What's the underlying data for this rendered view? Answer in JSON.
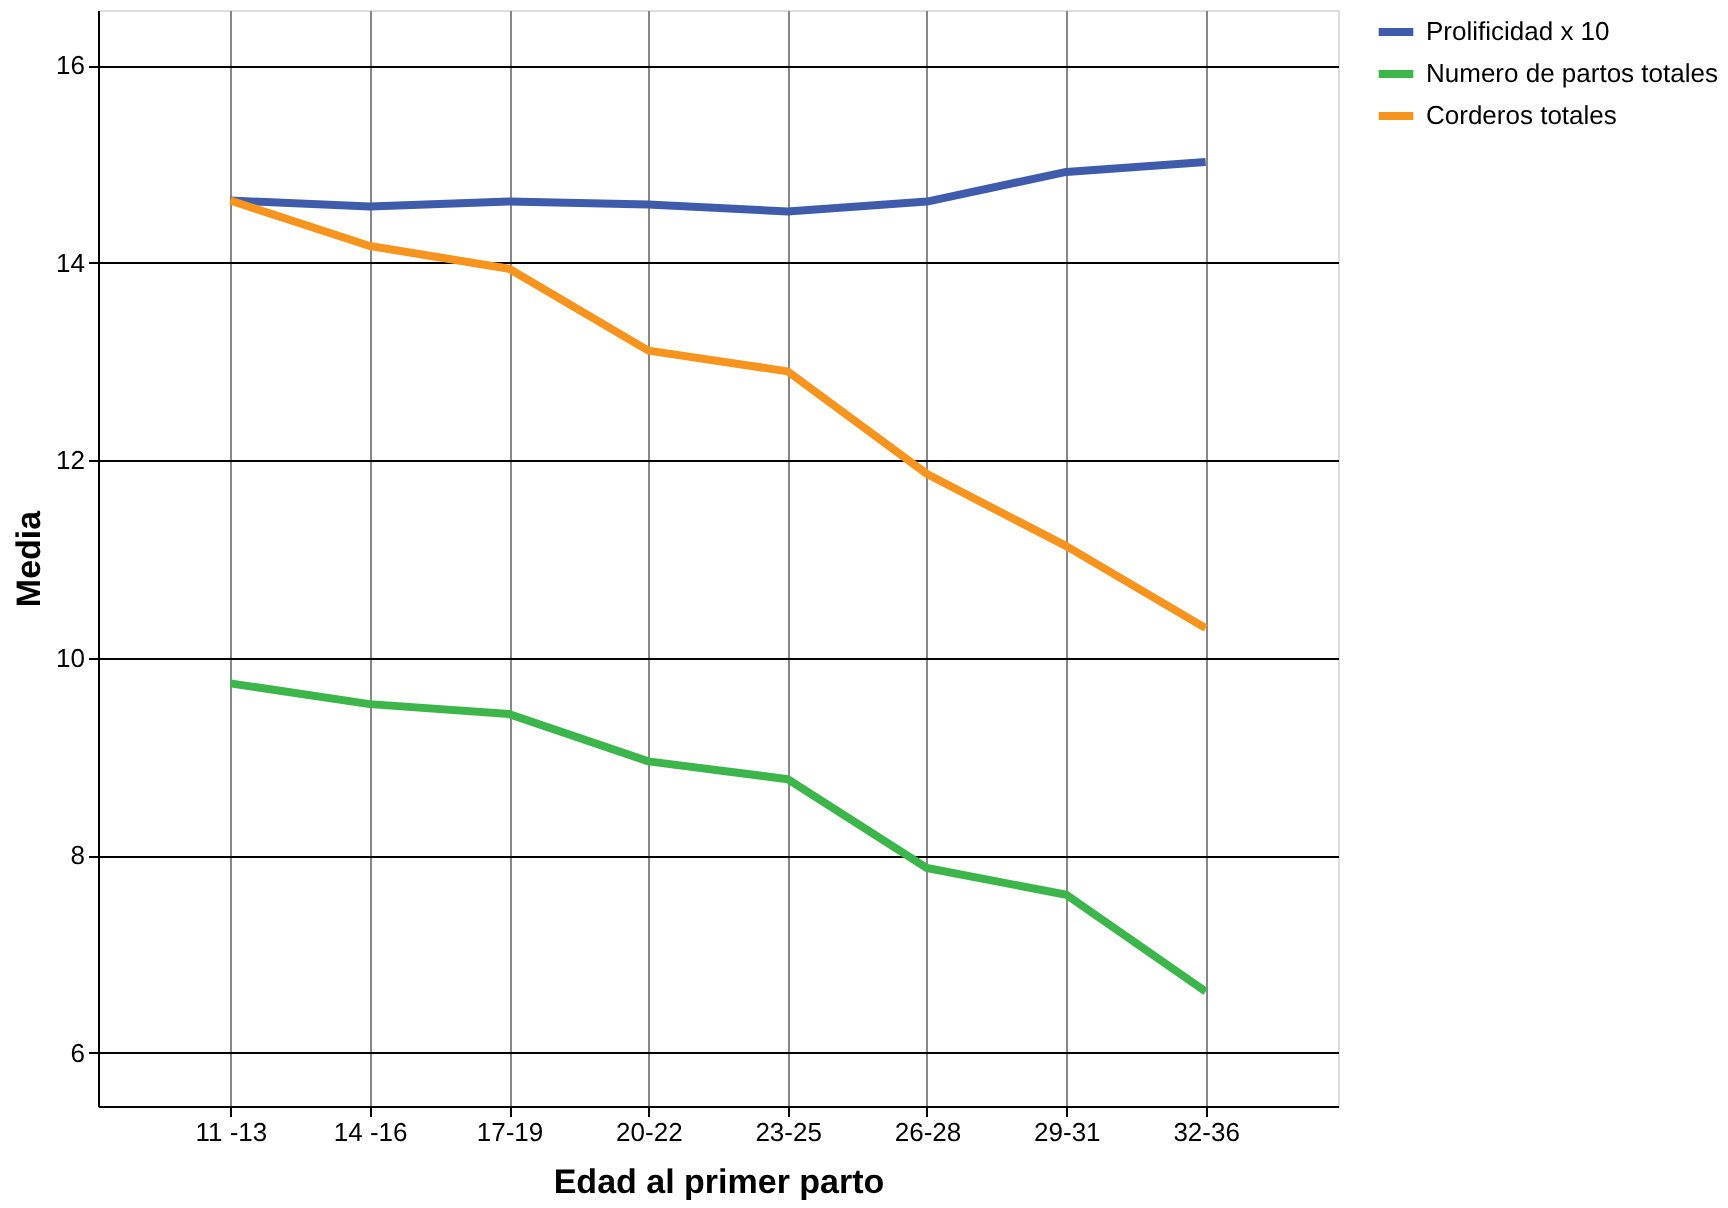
{
  "chart_data": {
    "type": "line",
    "xlabel": "Edad al primer parto",
    "ylabel": "Media",
    "categories": [
      "11 -13",
      "14 -16",
      "17-19",
      "20-22",
      "23-25",
      "26-28",
      "29-31",
      "32-36"
    ],
    "series": [
      {
        "name": "Prolificidad x 10",
        "color": "#3f5bab",
        "values": [
          14.63,
          14.57,
          14.62,
          14.59,
          14.52,
          14.62,
          14.92,
          15.02
        ]
      },
      {
        "name": "Numero de partos totales",
        "color": "#3cb54a",
        "values": [
          9.74,
          9.53,
          9.43,
          8.95,
          8.77,
          7.87,
          7.6,
          6.62
        ]
      },
      {
        "name": "Corderos totales",
        "color": "#f7941d",
        "values": [
          14.63,
          14.17,
          13.94,
          13.11,
          12.9,
          11.86,
          11.13,
          10.3
        ]
      }
    ],
    "ylim": [
      5.46,
      16.56
    ],
    "yticks": [
      6,
      8,
      10,
      12,
      14,
      16
    ],
    "grid": true,
    "legend": "top right",
    "marker": "none",
    "line_style": "solid"
  }
}
